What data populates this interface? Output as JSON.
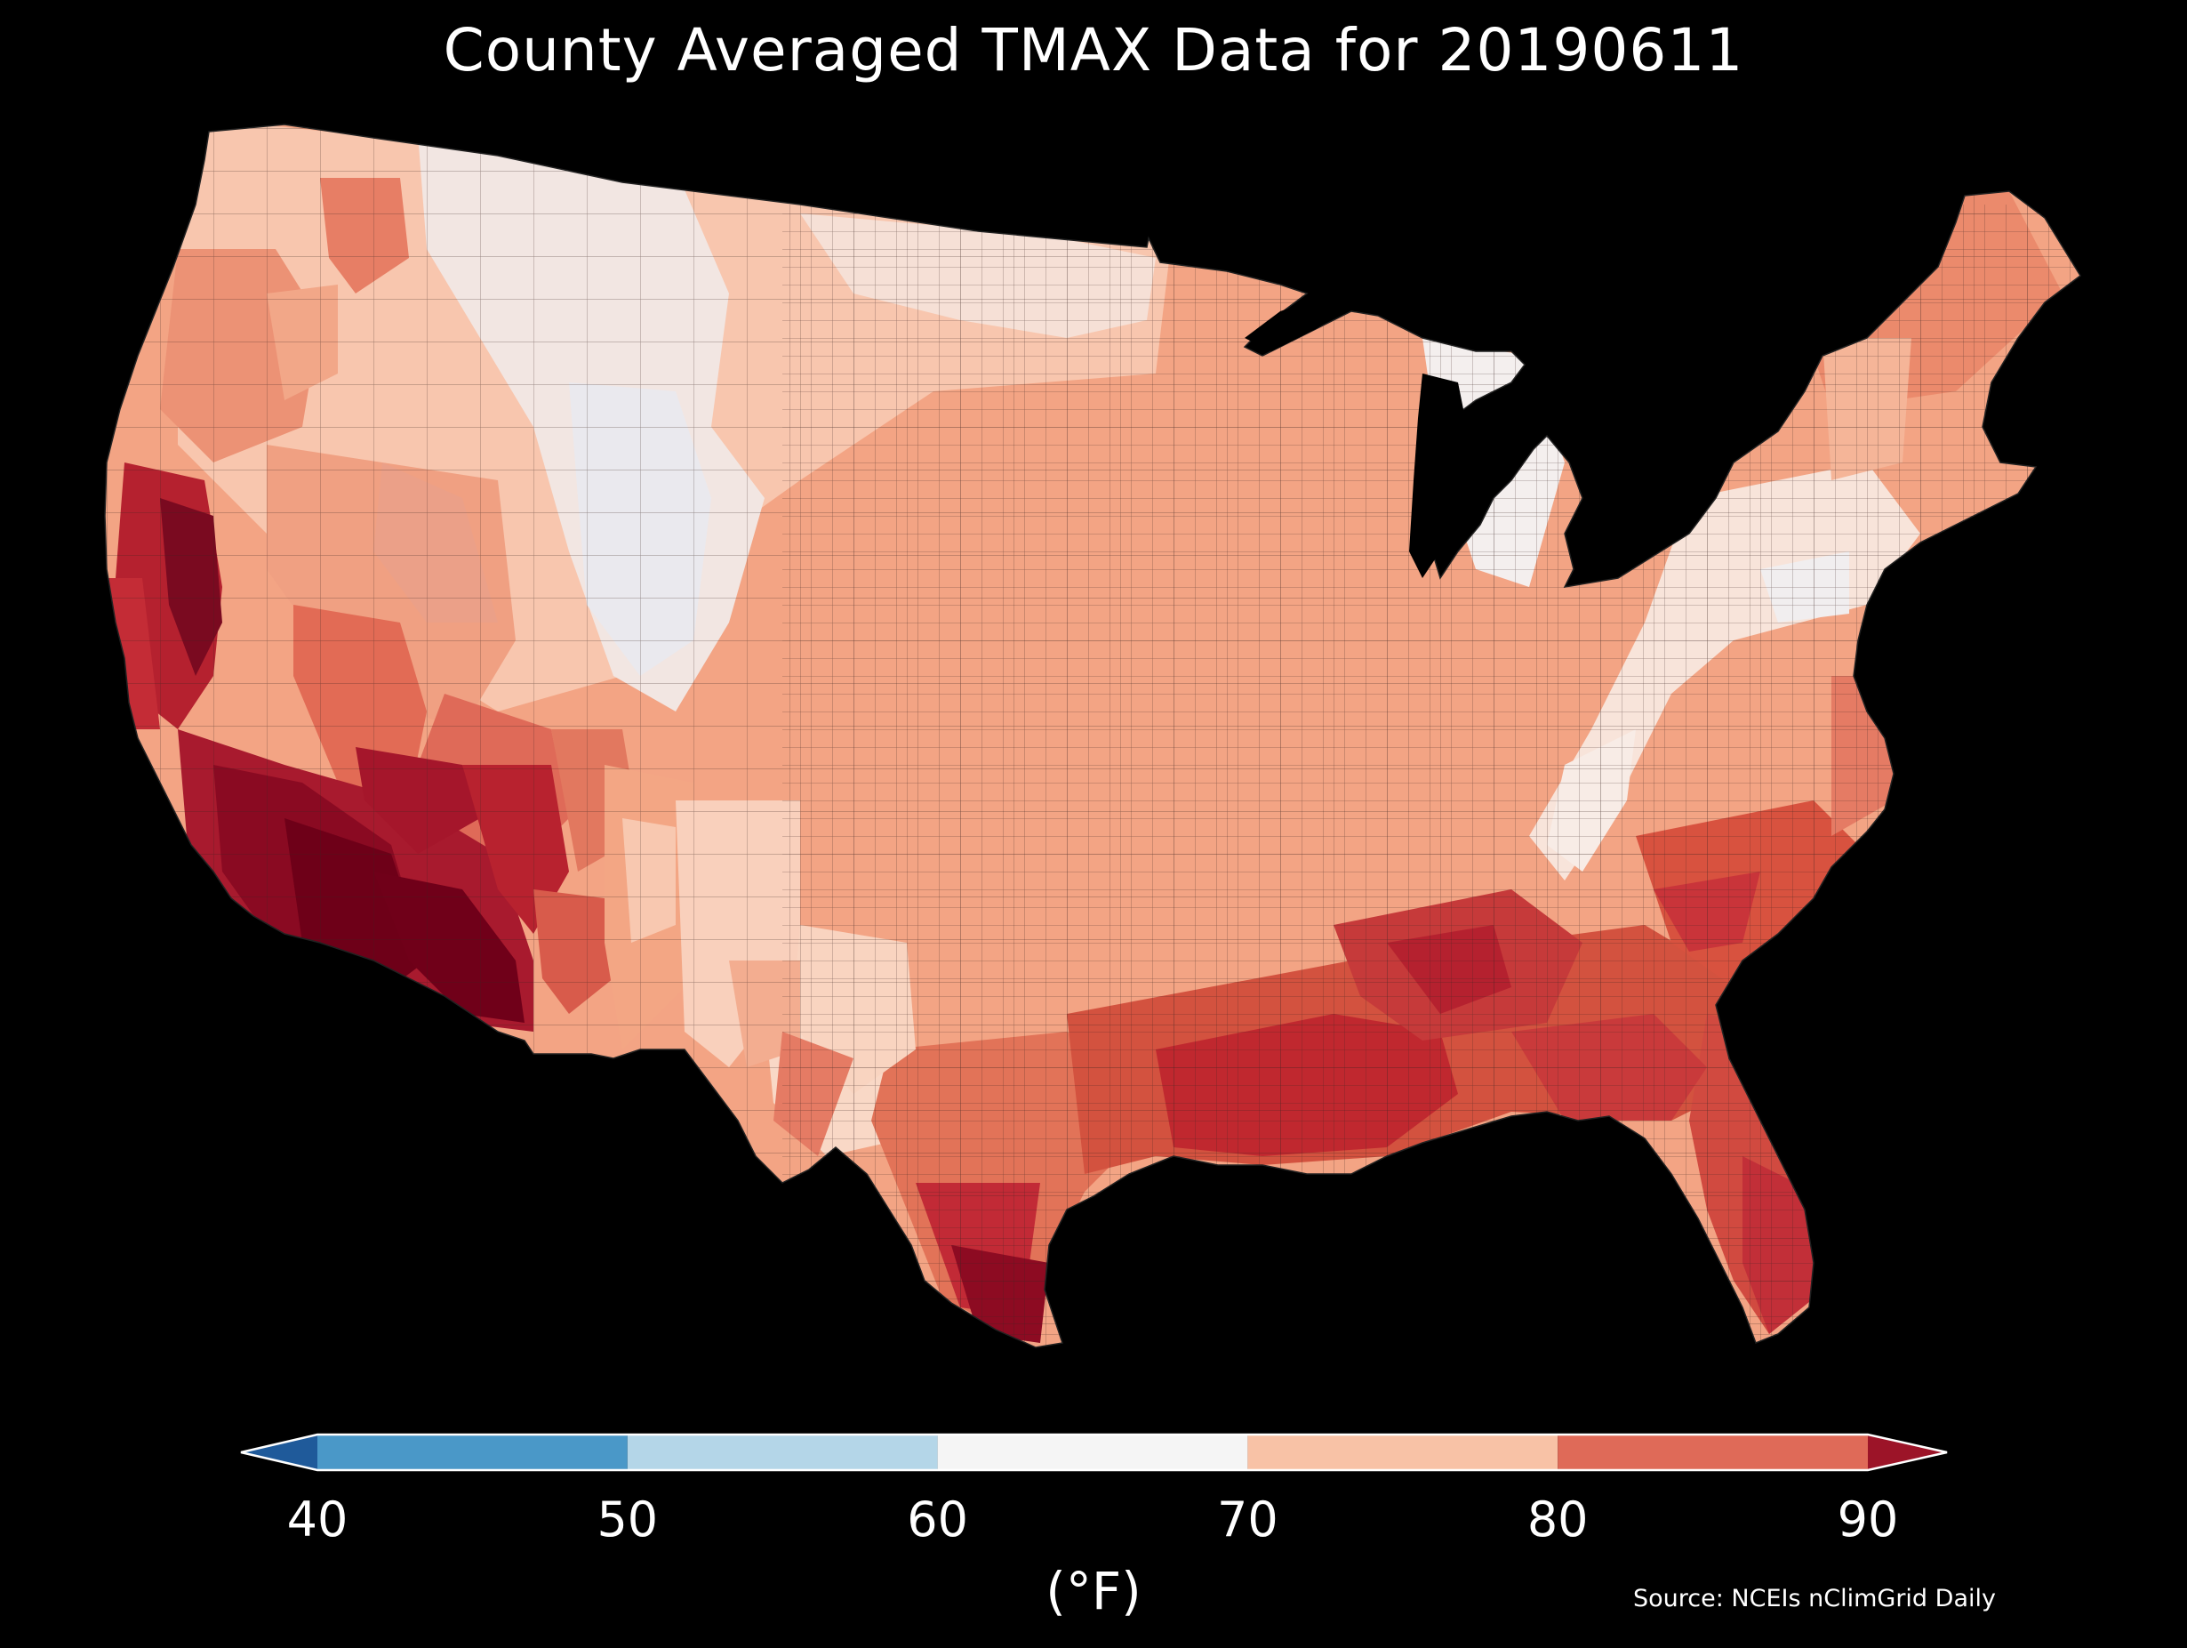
{
  "title": "County Averaged TMAX Data for 20190611",
  "colorbar": {
    "ticks": [
      "40",
      "50",
      "60",
      "70",
      "80",
      "90"
    ],
    "unit": "(°F)",
    "bins": [
      {
        "range": "<40",
        "color": "#1f5a9a"
      },
      {
        "range": "40-50",
        "color": "#4a98c8"
      },
      {
        "range": "50-60",
        "color": "#b4d6e8"
      },
      {
        "range": "60-70",
        "color": "#f5f5f5"
      },
      {
        "range": "70-80",
        "color": "#f8c2a6"
      },
      {
        "range": "80-90",
        "color": "#df6a58"
      },
      {
        "range": ">90",
        "color": "#9c1428"
      }
    ]
  },
  "source": "Source: NCEIs nClimGrid Daily",
  "map_colors": {
    "white": "#f5f2f0",
    "light": "#f9d3bf",
    "peach": "#f3a484",
    "salmon": "#e57b64",
    "red": "#c42c36",
    "darkred": "#8e0b22",
    "deepred": "#6a0018",
    "paleblue": "#e3edf5"
  }
}
